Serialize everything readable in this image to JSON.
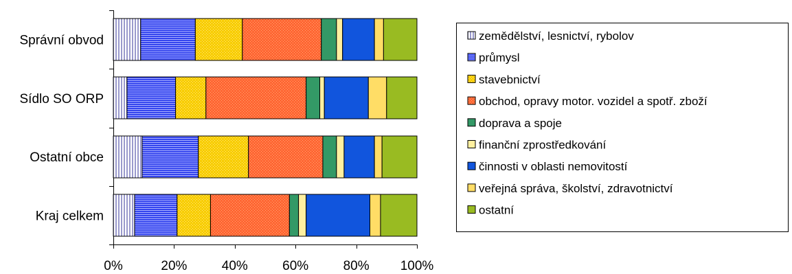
{
  "chart_data": {
    "type": "bar",
    "orientation": "horizontal",
    "stacked": "percent",
    "categories": [
      "Správní obvod",
      "Sídlo SO ORP",
      "Ostatní obce",
      "Kraj celkem"
    ],
    "series": [
      {
        "name": "zemědělství, lesnictví, rybolov",
        "color": "#d0d0f0",
        "pattern": "vertical-lines",
        "values": [
          9,
          4.5,
          9.5,
          7
        ]
      },
      {
        "name": "průmysl",
        "color": "#3344ee",
        "pattern": "horizontal-lines",
        "values": [
          18,
          16,
          18.5,
          14
        ]
      },
      {
        "name": "stavebnictví",
        "color": "#f8cc00",
        "pattern": "dots",
        "values": [
          15.5,
          10,
          16.5,
          11
        ]
      },
      {
        "name": "obchod, opravy motor. vozidel a spotř. zboží",
        "color": "#ff6633",
        "pattern": "dots",
        "values": [
          26,
          33,
          24.5,
          26
        ]
      },
      {
        "name": "doprava a spoje",
        "color": "#339966",
        "pattern": "none",
        "values": [
          5,
          4.5,
          4.5,
          3
        ]
      },
      {
        "name": "finanční zprostředkování",
        "color": "#fff0a0",
        "pattern": "none",
        "values": [
          2,
          1.5,
          2.5,
          2.5
        ]
      },
      {
        "name": "činnosti v oblasti nemovitostí",
        "color": "#1155dd",
        "pattern": "none",
        "values": [
          10.5,
          14.5,
          10,
          21
        ]
      },
      {
        "name": "veřejná správa, školství, zdravotnictví",
        "color": "#ffdd66",
        "pattern": "none",
        "values": [
          3,
          6,
          2.5,
          3.5
        ]
      },
      {
        "name": "ostatní",
        "color": "#99bb22",
        "pattern": "none",
        "values": [
          11,
          10,
          11.5,
          12
        ]
      }
    ],
    "xaxis": {
      "ticks": [
        "0%",
        "20%",
        "40%",
        "60%",
        "80%",
        "100%"
      ],
      "range": [
        0,
        100
      ]
    },
    "legend_position": "right",
    "grid": false
  }
}
